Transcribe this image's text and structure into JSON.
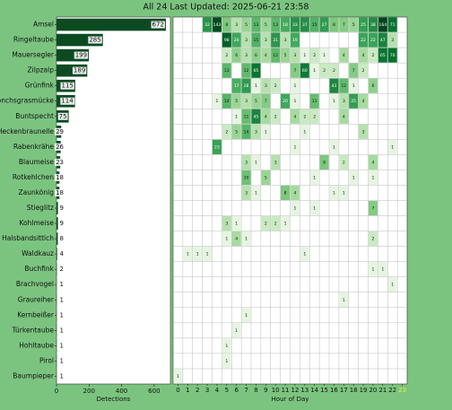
{
  "chart_data": [
    {
      "type": "barh",
      "title": "All 24 Last Updated: 2025-06-21 23:58",
      "categories": [
        "Amsel",
        "Ringeltaube",
        "Mauersegler",
        "Zilpzalp",
        "Grünfink",
        "Mönchsgrasmücke",
        "Buntspecht",
        "Heckenbraunelle",
        "Rabenkrähe",
        "Blaumeise",
        "Rotkehlchen",
        "Zaunkönig",
        "Stieglitz",
        "Kohlmeise",
        "Halsbandsittich",
        "Waldkauz",
        "Buchfink",
        "Brachvogel",
        "Graureiher",
        "Kernbeißer",
        "Türkentaube",
        "Hohltaube",
        "Pirol",
        "Baumpieper"
      ],
      "values": [
        672,
        285,
        199,
        189,
        115,
        114,
        75,
        29,
        26,
        23,
        18,
        18,
        9,
        9,
        8,
        4,
        2,
        1,
        1,
        1,
        1,
        1,
        1,
        1
      ],
      "color": "#0d4a22",
      "xlim": [
        0,
        700
      ],
      "xticks": [
        0,
        200,
        400,
        600
      ],
      "xlabel": "Detections"
    },
    {
      "type": "heatmap",
      "xlabel": "Hour of Day",
      "x": [
        0,
        1,
        2,
        3,
        4,
        5,
        6,
        7,
        8,
        9,
        10,
        11,
        12,
        13,
        14,
        15,
        16,
        17,
        18,
        19,
        20,
        21,
        22,
        23
      ],
      "colormap": [
        "#f7fcf5",
        "#e5f5e0",
        "#c7e9c0",
        "#a1d99b",
        "#74c476",
        "#41ab5d",
        "#238b45",
        "#006d2c",
        "#00441b"
      ],
      "values": [
        [
          null,
          null,
          null,
          32,
          143,
          8,
          3,
          5,
          13,
          5,
          13,
          18,
          33,
          37,
          15,
          27,
          8,
          7,
          5,
          25,
          38,
          164,
          71,
          null
        ],
        [
          null,
          null,
          null,
          null,
          null,
          98,
          20,
          3,
          15,
          3,
          31,
          3,
          19,
          null,
          null,
          null,
          null,
          null,
          null,
          22,
          22,
          47,
          3,
          null
        ],
        [
          null,
          null,
          null,
          null,
          null,
          2,
          6,
          3,
          6,
          4,
          12,
          5,
          3,
          1,
          2,
          1,
          null,
          4,
          null,
          4,
          2,
          65,
          70,
          null
        ],
        [
          null,
          null,
          null,
          null,
          null,
          13,
          null,
          12,
          65,
          null,
          null,
          null,
          7,
          60,
          1,
          2,
          2,
          null,
          7,
          2,
          null,
          null,
          null,
          null
        ],
        [
          null,
          null,
          null,
          null,
          null,
          null,
          17,
          28,
          1,
          3,
          2,
          null,
          1,
          null,
          null,
          null,
          43,
          12,
          1,
          null,
          6,
          null,
          null,
          null
        ],
        [
          null,
          null,
          null,
          null,
          1,
          14,
          5,
          3,
          5,
          7,
          null,
          20,
          1,
          null,
          11,
          null,
          1,
          3,
          25,
          4,
          null,
          null,
          null,
          null
        ],
        [
          null,
          null,
          null,
          null,
          null,
          null,
          1,
          11,
          45,
          4,
          2,
          null,
          4,
          2,
          2,
          null,
          null,
          4,
          null,
          null,
          null,
          null,
          null,
          null
        ],
        [
          null,
          null,
          null,
          null,
          null,
          2,
          5,
          14,
          3,
          1,
          null,
          null,
          null,
          1,
          null,
          null,
          null,
          null,
          null,
          3,
          null,
          null,
          null,
          null
        ],
        [
          null,
          null,
          null,
          null,
          23,
          null,
          null,
          null,
          null,
          null,
          null,
          null,
          1,
          null,
          null,
          null,
          1,
          null,
          null,
          null,
          null,
          null,
          1,
          null
        ],
        [
          null,
          null,
          null,
          null,
          null,
          null,
          null,
          3,
          1,
          null,
          3,
          null,
          null,
          null,
          null,
          8,
          null,
          2,
          null,
          null,
          4,
          null,
          null,
          null
        ],
        [
          null,
          null,
          null,
          null,
          null,
          null,
          null,
          10,
          null,
          5,
          null,
          null,
          null,
          null,
          1,
          null,
          null,
          null,
          1,
          null,
          1,
          null,
          null,
          null
        ],
        [
          null,
          null,
          null,
          null,
          null,
          null,
          null,
          3,
          1,
          null,
          null,
          8,
          4,
          null,
          null,
          null,
          1,
          1,
          null,
          null,
          null,
          null,
          null,
          null
        ],
        [
          null,
          null,
          null,
          null,
          null,
          null,
          null,
          null,
          null,
          null,
          null,
          null,
          1,
          null,
          1,
          null,
          null,
          null,
          null,
          null,
          7,
          null,
          null,
          null
        ],
        [
          null,
          null,
          null,
          null,
          null,
          3,
          1,
          null,
          null,
          2,
          2,
          1,
          null,
          null,
          null,
          null,
          null,
          null,
          null,
          null,
          null,
          null,
          null,
          null
        ],
        [
          null,
          null,
          null,
          null,
          null,
          1,
          4,
          1,
          null,
          null,
          null,
          null,
          null,
          null,
          null,
          null,
          null,
          null,
          null,
          null,
          2,
          null,
          null,
          null
        ],
        [
          null,
          1,
          1,
          1,
          null,
          null,
          null,
          null,
          null,
          null,
          null,
          null,
          null,
          1,
          null,
          null,
          null,
          null,
          null,
          null,
          null,
          null,
          null,
          null
        ],
        [
          null,
          null,
          null,
          null,
          null,
          null,
          null,
          null,
          null,
          null,
          null,
          null,
          null,
          null,
          null,
          null,
          null,
          null,
          null,
          null,
          1,
          1,
          null,
          null
        ],
        [
          null,
          null,
          null,
          null,
          null,
          null,
          null,
          null,
          null,
          null,
          null,
          null,
          null,
          null,
          null,
          null,
          null,
          null,
          null,
          null,
          null,
          null,
          1,
          null
        ],
        [
          null,
          null,
          null,
          null,
          null,
          null,
          null,
          null,
          null,
          null,
          null,
          null,
          null,
          null,
          null,
          null,
          null,
          1,
          null,
          null,
          null,
          null,
          null,
          null
        ],
        [
          null,
          null,
          null,
          null,
          null,
          null,
          null,
          1,
          null,
          null,
          null,
          null,
          null,
          null,
          null,
          null,
          null,
          null,
          null,
          null,
          null,
          null,
          null,
          null
        ],
        [
          null,
          null,
          null,
          null,
          null,
          null,
          1,
          null,
          null,
          null,
          null,
          null,
          null,
          null,
          null,
          null,
          null,
          null,
          null,
          null,
          null,
          null,
          null,
          null
        ],
        [
          null,
          null,
          null,
          null,
          null,
          1,
          null,
          null,
          null,
          null,
          null,
          null,
          null,
          null,
          null,
          null,
          null,
          null,
          null,
          null,
          null,
          null,
          null,
          null
        ],
        [
          null,
          null,
          null,
          null,
          null,
          1,
          null,
          null,
          null,
          null,
          null,
          null,
          null,
          null,
          null,
          null,
          null,
          null,
          null,
          null,
          null,
          null,
          null,
          null
        ],
        [
          1,
          null,
          null,
          null,
          null,
          null,
          null,
          null,
          null,
          null,
          null,
          null,
          null,
          null,
          null,
          null,
          null,
          null,
          null,
          null,
          null,
          null,
          null,
          null
        ]
      ]
    }
  ]
}
